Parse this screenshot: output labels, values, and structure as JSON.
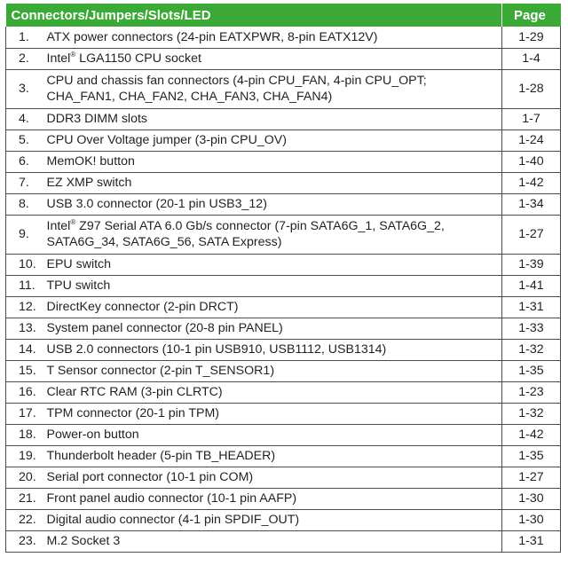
{
  "colors": {
    "header_bg": "#3aa936",
    "header_text": "#ffffff",
    "border": "#4a4a4a"
  },
  "header": {
    "title": "Connectors/Jumpers/Slots/LED",
    "page_label": "Page"
  },
  "rows": [
    {
      "num": "1.",
      "pre": "ATX power connectors (24-pin EATXPWR, 8-pin EATX12V)",
      "sup": "",
      "post": "",
      "page": "1-29"
    },
    {
      "num": "2.",
      "pre": "Intel",
      "sup": "®",
      "post": " LGA1150 CPU socket",
      "page": "1-4"
    },
    {
      "num": "3.",
      "pre": "CPU and chassis fan connectors (4-pin CPU_FAN, 4-pin CPU_OPT; CHA_FAN1, CHA_FAN2, CHA_FAN3, CHA_FAN4)",
      "sup": "",
      "post": "",
      "page": "1-28",
      "tall": true
    },
    {
      "num": "4.",
      "pre": "DDR3 DIMM slots",
      "sup": "",
      "post": "",
      "page": "1-7"
    },
    {
      "num": "5.",
      "pre": "CPU Over Voltage  jumper (3-pin CPU_OV)",
      "sup": "",
      "post": "",
      "page": "1-24"
    },
    {
      "num": "6.",
      "pre": "MemOK! button",
      "sup": "",
      "post": "",
      "page": "1-40"
    },
    {
      "num": "7.",
      "pre": "EZ XMP switch",
      "sup": "",
      "post": "",
      "page": "1-42"
    },
    {
      "num": "8.",
      "pre": "USB 3.0 connector (20-1 pin USB3_12)",
      "sup": "",
      "post": "",
      "page": "1-34"
    },
    {
      "num": "9.",
      "pre": "Intel",
      "sup": "®",
      "post": " Z97 Serial ATA 6.0 Gb/s connector (7-pin SATA6G_1, SATA6G_2, SATA6G_34, SATA6G_56, SATA Express)",
      "page": "1-27",
      "tall": true
    },
    {
      "num": "10.",
      "pre": "EPU switch",
      "sup": "",
      "post": "",
      "page": "1-39"
    },
    {
      "num": "11.",
      "pre": "TPU switch",
      "sup": "",
      "post": "",
      "page": "1-41"
    },
    {
      "num": "12.",
      "pre": "DirectKey connector (2-pin DRCT)",
      "sup": "",
      "post": "",
      "page": "1-31"
    },
    {
      "num": "13.",
      "pre": "System panel connector (20-8 pin PANEL)",
      "sup": "",
      "post": "",
      "page": "1-33"
    },
    {
      "num": "14.",
      "pre": "USB 2.0 connectors (10-1 pin USB910, USB1112, USB1314)",
      "sup": "",
      "post": "",
      "page": "1-32"
    },
    {
      "num": "15.",
      "pre": "T Sensor connector (2-pin T_SENSOR1)",
      "sup": "",
      "post": "",
      "page": "1-35"
    },
    {
      "num": "16.",
      "pre": "Clear RTC RAM (3-pin CLRTC)",
      "sup": "",
      "post": "",
      "page": "1-23"
    },
    {
      "num": "17.",
      "pre": "TPM connector (20-1 pin TPM)",
      "sup": "",
      "post": "",
      "page": "1-32"
    },
    {
      "num": "18.",
      "pre": "Power-on button",
      "sup": "",
      "post": "",
      "page": "1-42"
    },
    {
      "num": "19.",
      "pre": "Thunderbolt header (5-pin TB_HEADER)",
      "sup": "",
      "post": "",
      "page": "1-35"
    },
    {
      "num": "20.",
      "pre": "Serial port connector (10-1 pin COM)",
      "sup": "",
      "post": "",
      "page": "1-27"
    },
    {
      "num": "21.",
      "pre": "Front panel audio connector (10-1 pin AAFP)",
      "sup": "",
      "post": "",
      "page": "1-30"
    },
    {
      "num": "22.",
      "pre": "Digital audio connector (4-1 pin SPDIF_OUT)",
      "sup": "",
      "post": "",
      "page": "1-30"
    },
    {
      "num": "23.",
      "pre": "M.2 Socket 3",
      "sup": "",
      "post": "",
      "page": "1-31"
    }
  ]
}
